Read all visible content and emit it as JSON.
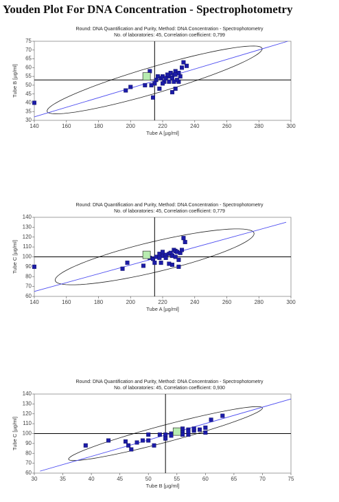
{
  "title": "Youden Plot For DNA Concentration - Spectrophotometry",
  "chart_data": [
    {
      "type": "scatter",
      "title": "Round: DNA Quantification and Purity, Method: DNA Concentration - Spectrophotometry",
      "subtitle": "No. of laboratories: 45, Correlation coefficient: 0,799",
      "xlabel": "Tube A [µg/ml]",
      "ylabel": "Tube B [µg/ml]",
      "xlim": [
        140,
        300
      ],
      "ylim": [
        30,
        75
      ],
      "xticks": [
        140,
        160,
        180,
        200,
        220,
        240,
        260,
        280,
        300
      ],
      "yticks": [
        30,
        35,
        40,
        45,
        50,
        55,
        60,
        65,
        70,
        75
      ],
      "series": [
        {
          "color": "#1c1ca8",
          "x": [
            140,
            197,
            200,
            209,
            212,
            214,
            216,
            218,
            219,
            220,
            222,
            224,
            225,
            226,
            227,
            228,
            226,
            228,
            230,
            231,
            232,
            233,
            235,
            229,
            223,
            221,
            217,
            215,
            230,
            227,
            224,
            220,
            213,
            228
          ],
          "y": [
            40,
            47,
            49,
            50,
            58,
            43,
            53,
            48,
            54,
            55,
            54,
            55,
            57,
            54,
            56,
            58,
            46,
            48,
            52,
            55,
            60,
            63,
            61,
            53,
            56,
            52,
            55,
            51,
            57,
            52,
            52,
            51,
            50,
            56
          ]
        }
      ],
      "highlight": {
        "x": 210,
        "y": 55,
        "color": "#b8ecb0"
      },
      "reference_lines": {
        "x": 215,
        "y": 53
      },
      "trend_line": {
        "x": [
          140,
          298
        ],
        "y": [
          32,
          75
        ],
        "color": "#4a4af0"
      },
      "ellipse": {
        "center": {
          "x": 215,
          "y": 53
        },
        "major_end": {
          "x": 282,
          "y": 71
        },
        "minor_end": {
          "x": 212,
          "y": 60
        }
      }
    },
    {
      "type": "scatter",
      "title": "Round: DNA Quantification and Purity, Method: DNA Concentration - Spectrophotometry",
      "subtitle": "No. of laboratories: 45, Correlation coefficient: 0,779",
      "xlabel": "Tube A [µg/ml]",
      "ylabel": "Tube C [µg/ml]",
      "xlim": [
        140,
        300
      ],
      "ylim": [
        60,
        140
      ],
      "xticks": [
        140,
        160,
        180,
        200,
        220,
        240,
        260,
        280,
        300
      ],
      "yticks": [
        60,
        70,
        80,
        90,
        100,
        110,
        120,
        130,
        140
      ],
      "series": [
        {
          "color": "#1c1ca8",
          "x": [
            140,
            195,
            198,
            208,
            212,
            214,
            215,
            216,
            218,
            219,
            220,
            222,
            224,
            224,
            225,
            226,
            227,
            228,
            229,
            230,
            231,
            232,
            233,
            234,
            226,
            222,
            228,
            230,
            218,
            220
          ],
          "y": [
            90,
            88,
            94,
            91,
            99,
            98,
            94,
            100,
            103,
            94,
            101,
            102,
            103,
            93,
            104,
            101,
            107,
            106,
            105,
            90,
            104,
            107,
            119,
            115,
            92,
            99,
            100,
            97,
            99,
            105
          ]
        }
      ],
      "highlight": {
        "x": 210,
        "y": 102,
        "color": "#b8ecb0"
      },
      "reference_lines": {
        "x": 215,
        "y": 100
      },
      "trend_line": {
        "x": [
          140,
          297
        ],
        "y": [
          65,
          135
        ],
        "color": "#4a4af0"
      },
      "ellipse": {
        "center": {
          "x": 215,
          "y": 100
        },
        "major_end": {
          "x": 277,
          "y": 124
        },
        "minor_end": {
          "x": 213,
          "y": 115
        }
      }
    },
    {
      "type": "scatter",
      "title": "Round: DNA Quantification and Purity, Method: DNA Concentration - Spectrophotometry",
      "subtitle": "No. of laboratories: 45, Correlation coefficient: 0,930",
      "xlabel": "Tube B [µg/ml]",
      "ylabel": "Tube C [µg/ml]",
      "xlim": [
        30,
        75
      ],
      "ylim": [
        60,
        140
      ],
      "xticks": [
        30,
        35,
        40,
        45,
        50,
        55,
        60,
        65,
        70,
        75
      ],
      "yticks": [
        60,
        70,
        80,
        90,
        100,
        110,
        120,
        130,
        140
      ],
      "series": [
        {
          "color": "#1c1ca8",
          "x": [
            39,
            43,
            46,
            46.5,
            47,
            48,
            49,
            50,
            50,
            51,
            52,
            53,
            53,
            54,
            56,
            56,
            57,
            57,
            58,
            58,
            59,
            60,
            61,
            63,
            60,
            55,
            57,
            56,
            54
          ],
          "y": [
            88,
            93,
            92,
            88,
            84,
            91,
            93,
            99,
            93,
            88,
            99,
            99,
            95,
            100,
            102,
            99,
            104,
            99,
            103,
            105,
            104,
            106,
            114,
            118,
            101,
            100,
            102,
            105,
            98
          ]
        }
      ],
      "highlight": {
        "x": 55,
        "y": 102,
        "color": "#b8ecb0"
      },
      "reference_lines": {
        "x": 53,
        "y": 100
      },
      "trend_line": {
        "x": [
          31,
          75
        ],
        "y": [
          62,
          135
        ],
        "color": "#4a4af0"
      },
      "ellipse": {
        "center": {
          "x": 53,
          "y": 100
        },
        "major_end": {
          "x": 70,
          "y": 126
        },
        "minor_end": {
          "x": 52.6,
          "y": 108.3
        }
      }
    }
  ]
}
